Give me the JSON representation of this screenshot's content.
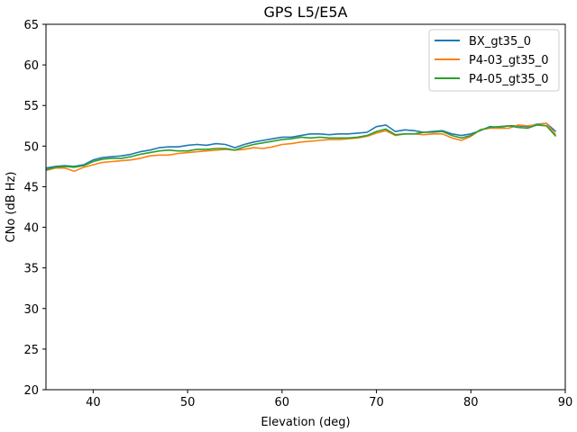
{
  "chart_data": {
    "type": "line",
    "title": "GPS L5/E5A",
    "xlabel": "Elevation (deg)",
    "ylabel": "CNo (dB Hz)",
    "xlim": [
      35,
      90
    ],
    "ylim": [
      20,
      65
    ],
    "xticks": [
      40,
      50,
      60,
      70,
      80,
      90
    ],
    "yticks": [
      20,
      25,
      30,
      35,
      40,
      45,
      50,
      55,
      60,
      65
    ],
    "grid": false,
    "legend_position": "upper right",
    "series": [
      {
        "name": "BX_gt35_0",
        "color": "#1f77b4",
        "x": [
          35,
          36,
          37,
          38,
          39,
          40,
          41,
          42,
          43,
          44,
          45,
          46,
          47,
          48,
          49,
          50,
          51,
          52,
          53,
          54,
          55,
          56,
          57,
          58,
          59,
          60,
          61,
          62,
          63,
          64,
          65,
          66,
          67,
          68,
          69,
          70,
          71,
          72,
          73,
          74,
          75,
          76,
          77,
          78,
          79,
          80,
          81,
          82,
          83,
          84,
          85,
          86,
          87,
          88,
          89
        ],
        "y": [
          47.3,
          47.5,
          47.6,
          47.5,
          47.7,
          48.3,
          48.6,
          48.7,
          48.8,
          49.0,
          49.3,
          49.5,
          49.8,
          49.9,
          49.9,
          50.1,
          50.2,
          50.1,
          50.3,
          50.2,
          49.8,
          50.2,
          50.5,
          50.7,
          50.9,
          51.1,
          51.1,
          51.3,
          51.5,
          51.5,
          51.4,
          51.5,
          51.5,
          51.6,
          51.7,
          52.4,
          52.6,
          51.8,
          52.0,
          51.9,
          51.7,
          51.8,
          51.9,
          51.5,
          51.3,
          51.5,
          51.9,
          52.4,
          52.3,
          52.5,
          52.5,
          52.4,
          52.7,
          52.8,
          51.8
        ]
      },
      {
        "name": "P4-03_gt35_0",
        "color": "#ff7f0e",
        "x": [
          35,
          36,
          37,
          38,
          39,
          40,
          41,
          42,
          43,
          44,
          45,
          46,
          47,
          48,
          49,
          50,
          51,
          52,
          53,
          54,
          55,
          56,
          57,
          58,
          59,
          60,
          61,
          62,
          63,
          64,
          65,
          66,
          67,
          68,
          69,
          70,
          71,
          72,
          73,
          74,
          75,
          76,
          77,
          78,
          79,
          80,
          81,
          82,
          83,
          84,
          85,
          86,
          87,
          88,
          89
        ],
        "y": [
          47.0,
          47.3,
          47.3,
          46.9,
          47.4,
          47.7,
          48.0,
          48.1,
          48.2,
          48.3,
          48.5,
          48.8,
          48.9,
          48.9,
          49.1,
          49.2,
          49.3,
          49.4,
          49.5,
          49.6,
          49.5,
          49.6,
          49.8,
          49.7,
          49.9,
          50.2,
          50.3,
          50.5,
          50.6,
          50.7,
          50.8,
          50.8,
          50.9,
          51.0,
          51.2,
          51.6,
          51.9,
          51.3,
          51.5,
          51.5,
          51.4,
          51.5,
          51.5,
          51.0,
          50.7,
          51.2,
          52.0,
          52.2,
          52.2,
          52.2,
          52.6,
          52.5,
          52.6,
          52.8,
          51.4
        ]
      },
      {
        "name": "P4-05_gt35_0",
        "color": "#2ca02c",
        "x": [
          35,
          36,
          37,
          38,
          39,
          40,
          41,
          42,
          43,
          44,
          45,
          46,
          47,
          48,
          49,
          50,
          51,
          52,
          53,
          54,
          55,
          56,
          57,
          58,
          59,
          60,
          61,
          62,
          63,
          64,
          65,
          66,
          67,
          68,
          69,
          70,
          71,
          72,
          73,
          74,
          75,
          76,
          77,
          78,
          79,
          80,
          81,
          82,
          83,
          84,
          85,
          86,
          87,
          88,
          89
        ],
        "y": [
          47.1,
          47.4,
          47.5,
          47.4,
          47.6,
          48.1,
          48.4,
          48.5,
          48.5,
          48.7,
          49.0,
          49.2,
          49.4,
          49.5,
          49.4,
          49.4,
          49.6,
          49.6,
          49.7,
          49.7,
          49.5,
          49.9,
          50.2,
          50.4,
          50.6,
          50.8,
          50.9,
          51.1,
          51.0,
          51.1,
          51.0,
          51.0,
          51.0,
          51.1,
          51.3,
          51.8,
          52.1,
          51.4,
          51.5,
          51.5,
          51.7,
          51.7,
          51.8,
          51.3,
          51.0,
          51.3,
          52.0,
          52.3,
          52.4,
          52.5,
          52.3,
          52.2,
          52.6,
          52.5,
          51.2
        ]
      }
    ]
  }
}
